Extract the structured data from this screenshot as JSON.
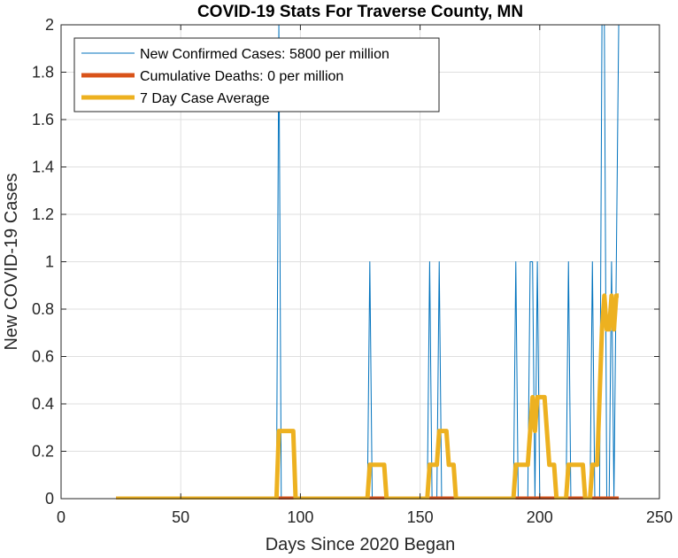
{
  "chart_data": {
    "type": "line",
    "title": "COVID-19 Stats For Traverse County, MN",
    "xlabel": "Days Since 2020 Began",
    "ylabel": "New COVID-19 Cases",
    "xlim": [
      0,
      250
    ],
    "ylim": [
      0,
      2
    ],
    "xticks": [
      0,
      50,
      100,
      150,
      200,
      250
    ],
    "yticks": [
      0,
      0.2,
      0.4,
      0.6,
      0.8,
      1,
      1.2,
      1.4,
      1.6,
      1.8,
      2
    ],
    "ytick_labels": [
      "0",
      "0.2",
      "0.4",
      "0.6",
      "0.8",
      "1",
      "1.2",
      "1.4",
      "1.6",
      "1.8",
      "2"
    ],
    "xtick_labels": [
      "0",
      "50",
      "100",
      "150",
      "200",
      "250"
    ],
    "grid": true,
    "legend_position": "top-left",
    "colors": {
      "new_cases": "#0072BD",
      "deaths": "#D95319",
      "avg": "#EDB120",
      "grid": "#dfdfdf",
      "axis": "#262626"
    },
    "series": [
      {
        "name": "New Confirmed Cases: 5800 per million",
        "x": [
          23,
          90,
          91,
          92,
          128,
          129,
          130,
          153,
          154,
          155,
          157,
          158,
          159,
          189,
          190,
          191,
          195,
          196,
          197,
          198,
          199,
          200,
          211,
          212,
          213,
          221,
          222,
          223,
          225,
          226,
          227,
          228,
          229,
          230,
          231,
          232,
          233
        ],
        "values": [
          0,
          0,
          2,
          0,
          0,
          1,
          0,
          0,
          1,
          0,
          0,
          1,
          0,
          0,
          1,
          0,
          0,
          1,
          1,
          0,
          1,
          0,
          0,
          1,
          0,
          0,
          1,
          0,
          0,
          2,
          2,
          0,
          0,
          1,
          0,
          1,
          2
        ]
      },
      {
        "name": "Cumulative Deaths: 0 per million",
        "x": [
          23,
          233
        ],
        "values": [
          0,
          0
        ]
      },
      {
        "name": "7 Day Case Average",
        "x": [
          23,
          90,
          91,
          97,
          98,
          128,
          129,
          135,
          136,
          153,
          154,
          157,
          158,
          159,
          161,
          162,
          164,
          165,
          189,
          190,
          195,
          196,
          197,
          198,
          199,
          200,
          202,
          203,
          204,
          206,
          207,
          211,
          212,
          218,
          219,
          221,
          222,
          224,
          225,
          226,
          227,
          228,
          229,
          230,
          231,
          232,
          233
        ],
        "values": [
          0,
          0,
          0.2857,
          0.2857,
          0,
          0,
          0.1429,
          0.1429,
          0,
          0,
          0.1429,
          0.1429,
          0.2857,
          0.2857,
          0.2857,
          0.1429,
          0.1429,
          0,
          0,
          0.1429,
          0.1429,
          0.2857,
          0.4286,
          0.2857,
          0.4286,
          0.4286,
          0.4286,
          0.2857,
          0.1429,
          0.1429,
          0,
          0,
          0.1429,
          0.1429,
          0,
          0,
          0.1429,
          0.1429,
          0.4286,
          0.7143,
          0.8571,
          0.7143,
          0.7143,
          0.8571,
          0.7143,
          0.8571,
          0.8571
        ]
      }
    ]
  }
}
